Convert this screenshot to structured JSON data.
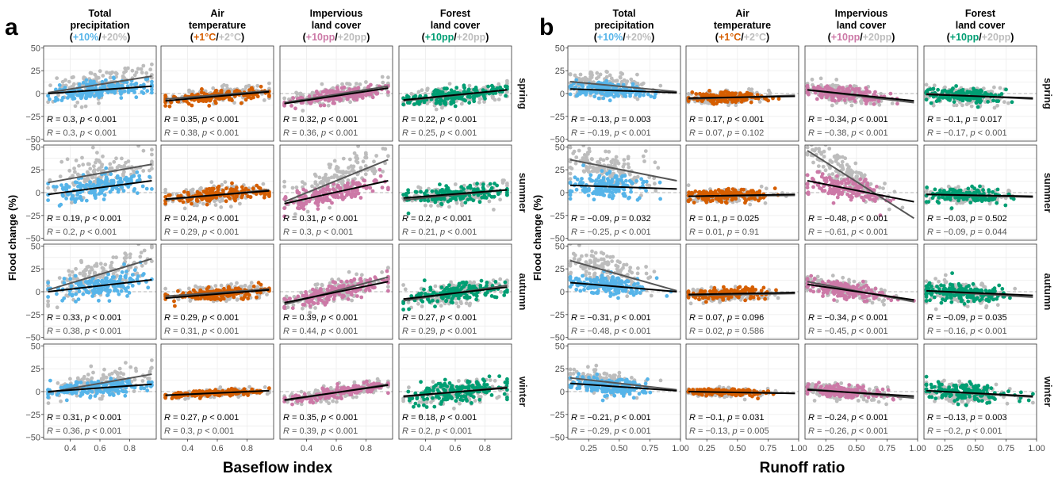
{
  "figure": {
    "colors": {
      "precipitation": "#56B4E9",
      "temperature": "#D55E00",
      "impervious": "#CC79A7",
      "forest": "#009E73",
      "grey_points": "#BDBDBD",
      "fit_primary": "#000000",
      "fit_secondary": "#555555",
      "zero_line": "#9E9E9E",
      "panel_bg": "#FFFFFF",
      "grid": "#EBEBEB"
    },
    "panels": [
      {
        "letter": "a",
        "xlabel": "Baseflow index",
        "ylabel": "Flood change (%)",
        "xlim": [
          0.22,
          0.98
        ],
        "xticks": [
          0.4,
          0.6,
          0.8
        ],
        "xtick_labels": [
          "0.4",
          "0.6",
          "0.8"
        ],
        "x_range": [
          0.25,
          0.95
        ],
        "x_center": 0.6
      },
      {
        "letter": "b",
        "xlabel": "Runoff ratio",
        "ylabel": "Flood change (%)",
        "xlim": [
          0.08,
          1.0
        ],
        "xticks": [
          0.25,
          0.5,
          0.75,
          1.0
        ],
        "xtick_labels": [
          "0.25",
          "0.50",
          "0.75",
          "1.00"
        ],
        "x_range": [
          0.1,
          0.97
        ],
        "x_center": 0.4
      }
    ],
    "columns": [
      {
        "line1": "Total",
        "line2": "precipitation",
        "a": "+10%",
        "sep": "/",
        "b": "+20%",
        "color_key": "precipitation"
      },
      {
        "line1": "Air",
        "line2": "temperature",
        "a": "+1°C",
        "sep": "/",
        "b": "+2°C",
        "color_key": "temperature"
      },
      {
        "line1": "Impervious",
        "line2": "land cover",
        "a": "+10pp",
        "sep": "/",
        "b": "+20pp",
        "color_key": "impervious"
      },
      {
        "line1": "Forest",
        "line2": "land cover",
        "a": "+10pp",
        "sep": "/",
        "b": "+20pp",
        "color_key": "forest"
      }
    ],
    "seasons": [
      "spring",
      "summer",
      "autumn",
      "winter"
    ],
    "ylim": [
      -52,
      52
    ],
    "yticks": [
      50,
      25,
      0,
      -25,
      -50
    ],
    "ytick_labels": [
      "50",
      "25",
      "0",
      "−25",
      "−50"
    ]
  },
  "chart_data": [
    {
      "type": "scatter",
      "title": "a",
      "xlabel": "Baseflow index",
      "ylabel": "Flood change (%)",
      "series": [
        "+10% / +1°C / +10pp scenario (coloured)",
        "+20% / +2°C / +20pp scenario (grey)"
      ],
      "rows": [
        "spring",
        "summer",
        "autumn",
        "winter"
      ],
      "cols": [
        "Total precipitation",
        "Air temperature",
        "Impervious land cover",
        "Forest land cover"
      ],
      "cells": [
        [
          {
            "primary": {
              "fit": [
                0.0,
                8.0
              ],
              "mean": 3,
              "spread": 9,
              "R": "0.3",
              "p": "< 0.001"
            },
            "secondary": {
              "fit": [
                1.0,
                19.0
              ],
              "mean": 9,
              "spread": 14,
              "R": "0.3",
              "p": "< 0.001"
            }
          },
          {
            "primary": {
              "fit": [
                -8.0,
                2.0
              ],
              "mean": -3,
              "spread": 6,
              "R": "0.35",
              "p": "< 0.001"
            },
            "secondary": {
              "fit": [
                -6.0,
                3.0
              ],
              "mean": -1,
              "spread": 7,
              "R": "0.38",
              "p": "< 0.001"
            }
          },
          {
            "primary": {
              "fit": [
                -11.0,
                6.0
              ],
              "mean": -2,
              "spread": 7,
              "R": "0.32",
              "p": "< 0.001"
            },
            "secondary": {
              "fit": [
                -10.0,
                8.0
              ],
              "mean": 0,
              "spread": 9,
              "R": "0.36",
              "p": "< 0.001"
            }
          },
          {
            "primary": {
              "fit": [
                -7.0,
                4.0
              ],
              "mean": -2,
              "spread": 8,
              "R": "0.22",
              "p": "< 0.001"
            },
            "secondary": {
              "fit": [
                -8.0,
                4.0
              ],
              "mean": -1,
              "spread": 10,
              "R": "0.25",
              "p": "< 0.001"
            }
          }
        ],
        [
          {
            "primary": {
              "fit": [
                -2.0,
                13.0
              ],
              "mean": 5,
              "spread": 12,
              "R": "0.19",
              "p": "< 0.001"
            },
            "secondary": {
              "fit": [
                11.0,
                31.0
              ],
              "mean": 20,
              "spread": 18,
              "R": "0.2",
              "p": "< 0.001"
            }
          },
          {
            "primary": {
              "fit": [
                -7.0,
                2.0
              ],
              "mean": -3,
              "spread": 7,
              "R": "0.24",
              "p": "< 0.001"
            },
            "secondary": {
              "fit": [
                -8.0,
                3.0
              ],
              "mean": -2,
              "spread": 9,
              "R": "0.29",
              "p": "< 0.001"
            }
          },
          {
            "primary": {
              "fit": [
                -12.0,
                13.0
              ],
              "mean": 0,
              "spread": 10,
              "R": "0.31",
              "p": "< 0.001"
            },
            "secondary": {
              "fit": [
                -10.0,
                36.0
              ],
              "mean": 11,
              "spread": 18,
              "R": "0.3",
              "p": "< 0.001"
            }
          },
          {
            "primary": {
              "fit": [
                -6.0,
                3.0
              ],
              "mean": -2,
              "spread": 8,
              "R": "0.2",
              "p": "< 0.001"
            },
            "secondary": {
              "fit": [
                -8.0,
                3.0
              ],
              "mean": -2,
              "spread": 11,
              "R": "0.21",
              "p": "< 0.001"
            }
          }
        ],
        [
          {
            "primary": {
              "fit": [
                0.0,
                13.0
              ],
              "mean": 6,
              "spread": 11,
              "R": "0.33",
              "p": "< 0.001"
            },
            "secondary": {
              "fit": [
                2.0,
                36.0
              ],
              "mean": 16,
              "spread": 16,
              "R": "0.38",
              "p": "< 0.001"
            }
          },
          {
            "primary": {
              "fit": [
                -7.0,
                2.0
              ],
              "mean": -2,
              "spread": 6,
              "R": "0.29",
              "p": "< 0.001"
            },
            "secondary": {
              "fit": [
                -5.0,
                3.0
              ],
              "mean": -1,
              "spread": 7,
              "R": "0.31",
              "p": "< 0.001"
            }
          },
          {
            "primary": {
              "fit": [
                -12.0,
                11.0
              ],
              "mean": 0,
              "spread": 9,
              "R": "0.39",
              "p": "< 0.001"
            },
            "secondary": {
              "fit": [
                -14.0,
                16.0
              ],
              "mean": 2,
              "spread": 12,
              "R": "0.44",
              "p": "< 0.001"
            }
          },
          {
            "primary": {
              "fit": [
                -8.0,
                5.0
              ],
              "mean": -1,
              "spread": 9,
              "R": "0.27",
              "p": "< 0.001"
            },
            "secondary": {
              "fit": [
                -10.0,
                7.0
              ],
              "mean": -1,
              "spread": 11,
              "R": "0.29",
              "p": "< 0.001"
            }
          }
        ],
        [
          {
            "primary": {
              "fit": [
                0.0,
                8.0
              ],
              "mean": 3,
              "spread": 8,
              "R": "0.31",
              "p": "< 0.001"
            },
            "secondary": {
              "fit": [
                -1.0,
                19.0
              ],
              "mean": 9,
              "spread": 12,
              "R": "0.36",
              "p": "< 0.001"
            }
          },
          {
            "primary": {
              "fit": [
                -4.0,
                1.0
              ],
              "mean": -1,
              "spread": 3,
              "R": "0.27",
              "p": "< 0.001"
            },
            "secondary": {
              "fit": [
                -4.0,
                1.0
              ],
              "mean": -1,
              "spread": 4,
              "R": "0.3",
              "p": "< 0.001"
            }
          },
          {
            "primary": {
              "fit": [
                -9.0,
                7.0
              ],
              "mean": -1,
              "spread": 6,
              "R": "0.35",
              "p": "< 0.001"
            },
            "secondary": {
              "fit": [
                -10.0,
                8.0
              ],
              "mean": -1,
              "spread": 8,
              "R": "0.39",
              "p": "< 0.001"
            }
          },
          {
            "primary": {
              "fit": [
                -5.0,
                4.0
              ],
              "mean": -1,
              "spread": 11,
              "R": "0.18",
              "p": "< 0.001"
            },
            "secondary": {
              "fit": [
                -6.0,
                5.0
              ],
              "mean": -1,
              "spread": 13,
              "R": "0.2",
              "p": "< 0.001"
            }
          }
        ]
      ]
    },
    {
      "type": "scatter",
      "title": "b",
      "xlabel": "Runoff ratio",
      "ylabel": "Flood change (%)",
      "series": [
        "+10% / +1°C / +10pp scenario (coloured)",
        "+20% / +2°C / +20pp scenario (grey)"
      ],
      "rows": [
        "spring",
        "summer",
        "autumn",
        "winter"
      ],
      "cols": [
        "Total precipitation",
        "Air temperature",
        "Impervious land cover",
        "Forest land cover"
      ],
      "cells": [
        [
          {
            "primary": {
              "fit": [
                5.0,
                1.0
              ],
              "mean": 3,
              "spread": 8,
              "R": "−0.13",
              "p": "= 0.003"
            },
            "secondary": {
              "fit": [
                13.0,
                2.0
              ],
              "mean": 8,
              "spread": 12,
              "R": "−0.19",
              "p": "< 0.001"
            }
          },
          {
            "primary": {
              "fit": [
                -5.0,
                -3.0
              ],
              "mean": -4,
              "spread": 5,
              "R": "0.17",
              "p": "< 0.001"
            },
            "secondary": {
              "fit": [
                -6.0,
                -2.0
              ],
              "mean": -4,
              "spread": 6,
              "R": "0.07",
              "p": "= 0.102"
            }
          },
          {
            "primary": {
              "fit": [
                4.0,
                -8.0
              ],
              "mean": -2,
              "spread": 7,
              "R": "−0.34",
              "p": "< 0.001"
            },
            "secondary": {
              "fit": [
                4.0,
                -10.0
              ],
              "mean": -3,
              "spread": 9,
              "R": "−0.38",
              "p": "< 0.001"
            }
          },
          {
            "primary": {
              "fit": [
                -1.0,
                -5.0
              ],
              "mean": -3,
              "spread": 7,
              "R": "−0.1",
              "p": "= 0.017"
            },
            "secondary": {
              "fit": [
                0.0,
                -6.0
              ],
              "mean": -3,
              "spread": 9,
              "R": "−0.17",
              "p": "< 0.001"
            }
          }
        ],
        [
          {
            "primary": {
              "fit": [
                8.0,
                4.0
              ],
              "mean": 6,
              "spread": 12,
              "R": "−0.09",
              "p": "= 0.032"
            },
            "secondary": {
              "fit": [
                36.0,
                13.0
              ],
              "mean": 22,
              "spread": 16,
              "R": "−0.25",
              "p": "< 0.001"
            }
          },
          {
            "primary": {
              "fit": [
                -4.0,
                -2.0
              ],
              "mean": -3,
              "spread": 6,
              "R": "0.1",
              "p": "= 0.025"
            },
            "secondary": {
              "fit": [
                -4.0,
                -3.0
              ],
              "mean": -3,
              "spread": 7,
              "R": "0.01",
              "p": "= 0.91"
            }
          },
          {
            "primary": {
              "fit": [
                13.0,
                -10.0
              ],
              "mean": 0,
              "spread": 12,
              "R": "−0.48",
              "p": "< 0.001"
            },
            "secondary": {
              "fit": [
                46.0,
                -28.0
              ],
              "mean": 8,
              "spread": 18,
              "R": "−0.61",
              "p": "< 0.001"
            }
          },
          {
            "primary": {
              "fit": [
                -2.0,
                -4.0
              ],
              "mean": -3,
              "spread": 7,
              "R": "−0.03",
              "p": "= 0.502"
            },
            "secondary": {
              "fit": [
                -2.0,
                -5.0
              ],
              "mean": -3,
              "spread": 9,
              "R": "−0.09",
              "p": "= 0.044"
            }
          }
        ],
        [
          {
            "primary": {
              "fit": [
                10.0,
                0.0
              ],
              "mean": 6,
              "spread": 10,
              "R": "−0.31",
              "p": "< 0.001"
            },
            "secondary": {
              "fit": [
                34.0,
                1.0
              ],
              "mean": 18,
              "spread": 16,
              "R": "−0.48",
              "p": "< 0.001"
            }
          },
          {
            "primary": {
              "fit": [
                -3.0,
                -1.0
              ],
              "mean": -2,
              "spread": 6,
              "R": "0.07",
              "p": "= 0.096"
            },
            "secondary": {
              "fit": [
                -4.0,
                -2.0
              ],
              "mean": -3,
              "spread": 7,
              "R": "0.02",
              "p": "= 0.586"
            }
          },
          {
            "primary": {
              "fit": [
                8.0,
                -9.0
              ],
              "mean": 0,
              "spread": 8,
              "R": "−0.34",
              "p": "< 0.001"
            },
            "secondary": {
              "fit": [
                11.0,
                -11.0
              ],
              "mean": 1,
              "spread": 10,
              "R": "−0.45",
              "p": "< 0.001"
            }
          },
          {
            "primary": {
              "fit": [
                1.0,
                -4.0
              ],
              "mean": -1,
              "spread": 9,
              "R": "−0.09",
              "p": "= 0.035"
            },
            "secondary": {
              "fit": [
                1.0,
                -6.0
              ],
              "mean": -1,
              "spread": 11,
              "R": "−0.16",
              "p": "< 0.001"
            }
          }
        ],
        [
          {
            "primary": {
              "fit": [
                9.0,
                1.0
              ],
              "mean": 4,
              "spread": 8,
              "R": "−0.21",
              "p": "< 0.001"
            },
            "secondary": {
              "fit": [
                15.0,
                2.0
              ],
              "mean": 8,
              "spread": 11,
              "R": "−0.29",
              "p": "< 0.001"
            }
          },
          {
            "primary": {
              "fit": [
                0.0,
                -2.0
              ],
              "mean": -1,
              "spread": 3,
              "R": "−0.1",
              "p": "= 0.031"
            },
            "secondary": {
              "fit": [
                0.0,
                -2.0
              ],
              "mean": -1,
              "spread": 4,
              "R": "−0.13",
              "p": "= 0.005"
            }
          },
          {
            "primary": {
              "fit": [
                2.0,
                -5.0
              ],
              "mean": -2,
              "spread": 6,
              "R": "−0.24",
              "p": "< 0.001"
            },
            "secondary": {
              "fit": [
                3.0,
                -7.0
              ],
              "mean": -2,
              "spread": 8,
              "R": "−0.26",
              "p": "< 0.001"
            }
          },
          {
            "primary": {
              "fit": [
                1.0,
                -5.0
              ],
              "mean": -3,
              "spread": 9,
              "R": "−0.13",
              "p": "= 0.003"
            },
            "secondary": {
              "fit": [
                1.0,
                -6.0
              ],
              "mean": -3,
              "spread": 11,
              "R": "−0.2",
              "p": "< 0.001"
            }
          }
        ]
      ]
    }
  ]
}
